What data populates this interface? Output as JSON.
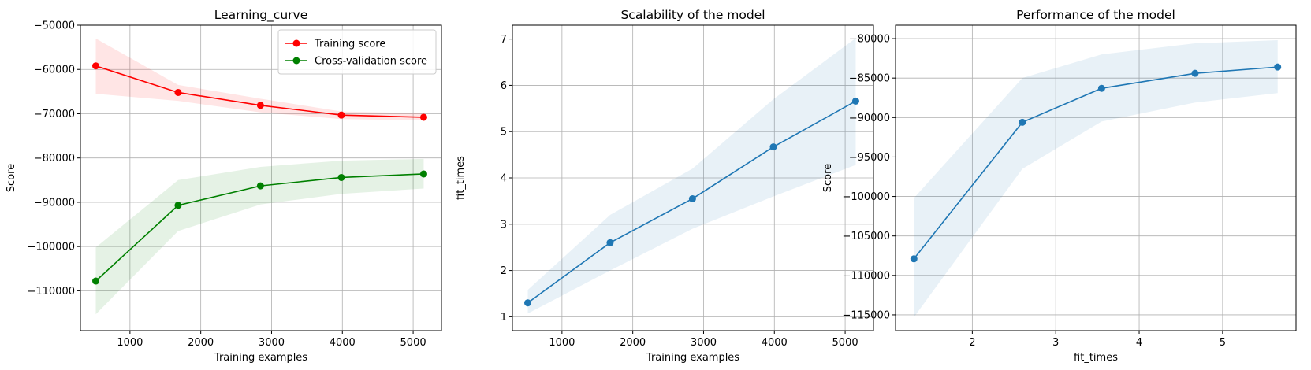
{
  "chart_data": [
    {
      "type": "line",
      "title": "Learning_curve",
      "xlabel": "Training examples",
      "ylabel": "Score",
      "xlim": [
        300,
        5400
      ],
      "ylim": [
        -119000,
        -50000
      ],
      "xticks": [
        1000,
        2000,
        3000,
        4000,
        5000
      ],
      "xtick_labels": [
        "1000",
        "2000",
        "3000",
        "4000",
        "5000"
      ],
      "yticks": [
        -110000,
        -100000,
        -90000,
        -80000,
        -70000,
        -60000,
        -50000
      ],
      "ytick_labels": [
        "−110000",
        "−100000",
        "−90000",
        "−80000",
        "−70000",
        "−60000",
        "−50000"
      ],
      "grid": true,
      "legend_position": "top-right",
      "series": [
        {
          "name": "Training score",
          "color": "#ff0000",
          "x": [
            517,
            1680,
            2843,
            3986,
            5149
          ],
          "y": [
            -59200,
            -65200,
            -68100,
            -70300,
            -70800
          ],
          "band_low": [
            -65500,
            -67100,
            -69700,
            -71200,
            -71500
          ],
          "band_high": [
            -53000,
            -63500,
            -66600,
            -69500,
            -69900
          ]
        },
        {
          "name": "Cross-validation score",
          "color": "#008000",
          "x": [
            517,
            1680,
            2843,
            3986,
            5149
          ],
          "y": [
            -107800,
            -90700,
            -86300,
            -84400,
            -83600
          ],
          "band_low": [
            -115300,
            -96500,
            -90500,
            -88100,
            -86900
          ],
          "band_high": [
            -100200,
            -85000,
            -82000,
            -80600,
            -80200
          ]
        }
      ]
    },
    {
      "type": "line",
      "title": "Scalability of the model",
      "xlabel": "Training examples",
      "ylabel": "fit_times",
      "xlim": [
        300,
        5400
      ],
      "ylim": [
        0.7,
        7.3
      ],
      "xticks": [
        1000,
        2000,
        3000,
        4000,
        5000
      ],
      "xtick_labels": [
        "1000",
        "2000",
        "3000",
        "4000",
        "5000"
      ],
      "yticks": [
        1,
        2,
        3,
        4,
        5,
        6,
        7
      ],
      "ytick_labels": [
        "1",
        "2",
        "3",
        "4",
        "5",
        "6",
        "7"
      ],
      "grid": true,
      "series": [
        {
          "color": "#1f77b4",
          "x": [
            517,
            1680,
            2843,
            3986,
            5149
          ],
          "y": [
            1.3,
            2.6,
            3.55,
            4.67,
            5.66
          ],
          "band_low": [
            1.07,
            2.0,
            2.9,
            3.6,
            4.28
          ],
          "band_high": [
            1.58,
            3.2,
            4.2,
            5.7,
            7.02
          ]
        }
      ]
    },
    {
      "type": "line",
      "title": "Performance of the model",
      "xlabel": "fit_times",
      "ylabel": "Score",
      "xlim": [
        1.08,
        5.88
      ],
      "ylim": [
        -117000,
        -78300
      ],
      "xticks": [
        2,
        3,
        4,
        5
      ],
      "xtick_labels": [
        "2",
        "3",
        "4",
        "5"
      ],
      "yticks": [
        -115000,
        -110000,
        -105000,
        -100000,
        -95000,
        -90000,
        -85000,
        -80000
      ],
      "ytick_labels": [
        "−115000",
        "−110000",
        "−105000",
        "−100000",
        "−95000",
        "−90000",
        "−85000",
        "−80000"
      ],
      "grid": true,
      "series": [
        {
          "color": "#1f77b4",
          "x": [
            1.3,
            2.6,
            3.55,
            4.67,
            5.66
          ],
          "y": [
            -107900,
            -90600,
            -86300,
            -84400,
            -83600
          ],
          "band_low": [
            -115300,
            -96500,
            -90500,
            -88100,
            -86900
          ],
          "band_high": [
            -100200,
            -85000,
            -82000,
            -80600,
            -80200
          ]
        }
      ]
    }
  ]
}
